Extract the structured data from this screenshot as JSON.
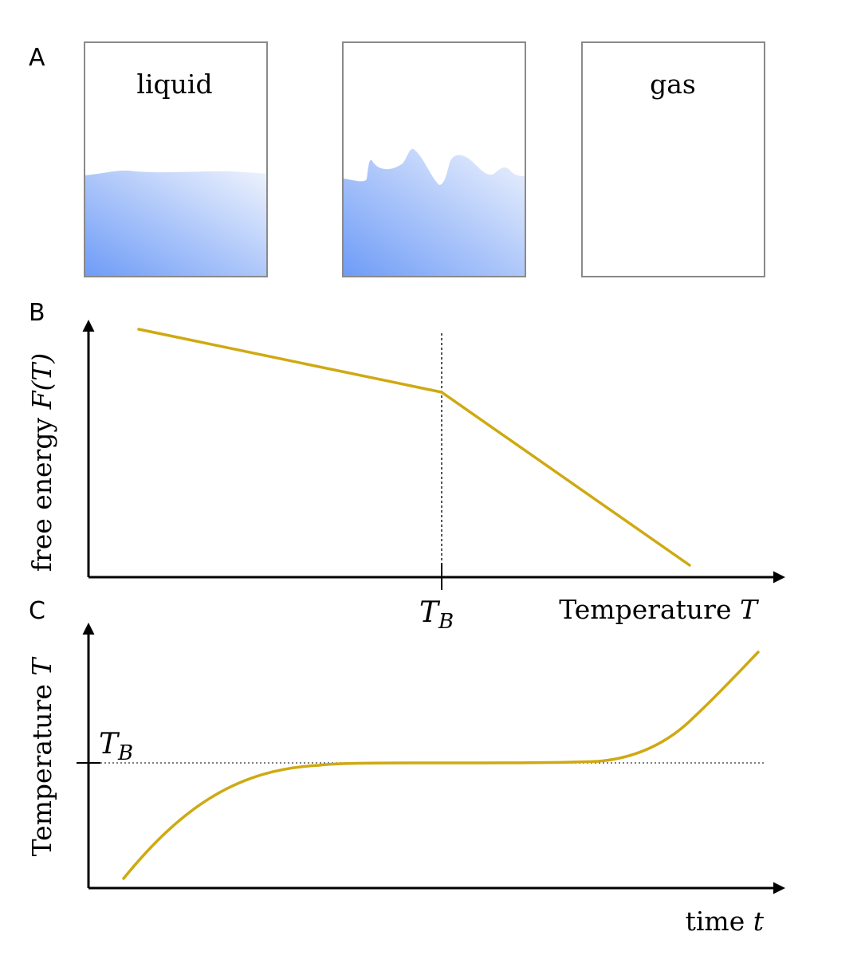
{
  "colors": {
    "curve": "#cfa912",
    "liquid_dark": "#6f9cf7",
    "liquid_light": "#eef3fd",
    "box_border": "#8a8a8a",
    "guide": "#555555"
  },
  "panel_a": {
    "label": "A",
    "boxes": [
      {
        "caption": "liquid",
        "state": "liquid"
      },
      {
        "caption": "",
        "state": "boiling"
      },
      {
        "caption": "gas",
        "state": "gas"
      }
    ]
  },
  "panel_b": {
    "label": "B",
    "ylabel_text": "free energy ",
    "ylabel_symbol": "F(T)",
    "xlabel_text": "Temperature ",
    "xlabel_symbol": "T",
    "marker_symbol": "T",
    "marker_subscript": "B"
  },
  "panel_c": {
    "label": "C",
    "ylabel_text": "Temperature ",
    "ylabel_symbol": "T",
    "xlabel_text": "time ",
    "xlabel_symbol": "t",
    "marker_symbol": "T",
    "marker_subscript": "B"
  },
  "chart_data": [
    {
      "type": "line",
      "panel": "B",
      "xlabel": "Temperature T",
      "ylabel": "free energy F(T)",
      "x_tick_labels": [
        "T_B"
      ],
      "x": [
        0.1,
        0.5,
        0.93
      ],
      "y": [
        0.95,
        0.72,
        0.03
      ],
      "break_at": "T_B",
      "grid": false
    },
    {
      "type": "line",
      "panel": "C",
      "xlabel": "time t",
      "ylabel": "Temperature T",
      "y_tick_labels": [
        "T_B"
      ],
      "reference_line": "T_B (dotted horizontal)",
      "curve_shape": "rises to T_B, stays flat at T_B, then rises above T_B",
      "grid": false
    }
  ]
}
